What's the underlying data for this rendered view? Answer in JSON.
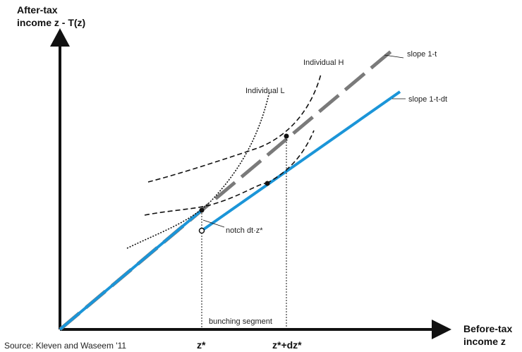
{
  "axes": {
    "y_label_line1": "After-tax",
    "y_label_line2": "income z - T(z)",
    "x_label_line1": "Before-tax",
    "x_label_line2": "income z"
  },
  "tick_labels": {
    "z_star": "z*",
    "z_star_dz": "z*+dz*"
  },
  "annotations": {
    "individual_l": "Individual L",
    "individual_h": "Individual H",
    "slope_upper": "slope 1-t",
    "slope_lower": "slope 1-t-dt",
    "notch": "notch dt·z*",
    "bunching": "bunching segment"
  },
  "source": "Source: Kleven and Waseem '11",
  "colors": {
    "budget_line": "#1b95d8",
    "reference_line": "#7a7a7a",
    "axis": "#111111",
    "curve": "#111111"
  }
}
